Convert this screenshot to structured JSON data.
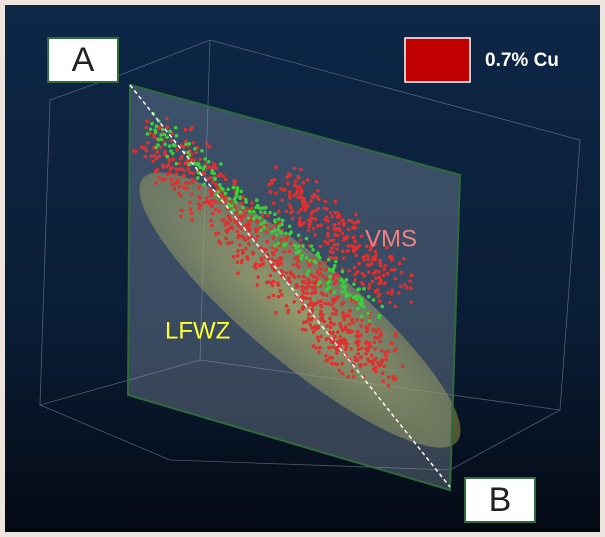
{
  "labels": {
    "a": "A",
    "b": "B",
    "legend": "0.7% Cu",
    "vms": "VMS",
    "lfwz": "LFWZ"
  }
}
